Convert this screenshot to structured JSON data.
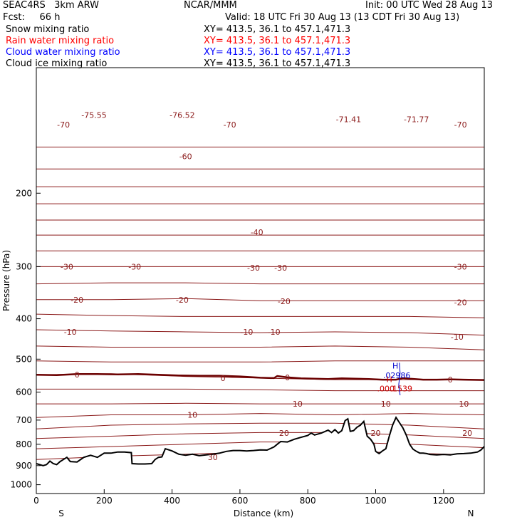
{
  "header": {
    "model": "SEAC4RS   3km ARW",
    "center": "NCAR/MMM",
    "init": "Init: 00 UTC Wed 28 Aug 13",
    "fcst": "Fcst:     66 h",
    "valid": "Valid: 18 UTC Fri 30 Aug 13 (13 CDT Fri 30 Aug 13)"
  },
  "legend": [
    {
      "label": "Snow mixing ratio",
      "xy": "XY= 413.5, 36.1 to 457.1,471.3",
      "color": "#000000"
    },
    {
      "label": "Rain water mixing ratio",
      "xy": "XY= 413.5, 36.1 to 457.1,471.3",
      "color": "#ff0000"
    },
    {
      "label": "Cloud water mixing ratio",
      "xy": "XY= 413.5, 36.1 to 457.1,471.3",
      "color": "#0000ff"
    },
    {
      "label": "Cloud ice mixing ratio",
      "xy": "XY= 413.5, 36.1 to 457.1,471.3",
      "color": "#000000"
    }
  ],
  "colors": {
    "isotherm": "#8b1a1a",
    "terrain": "#000000",
    "rain": "#cc0000",
    "cloud": "#0000cc"
  },
  "chart_data": {
    "type": "line",
    "xlabel": "Distance (km)",
    "ylabel": "Pressure (hPa)",
    "xlim": [
      0,
      1320
    ],
    "ylim": [
      1050,
      100
    ],
    "y_scale": "log",
    "x_ticks": [
      0,
      200,
      400,
      600,
      800,
      1000,
      1200
    ],
    "y_ticks": [
      200,
      300,
      400,
      500,
      600,
      700,
      800,
      900,
      1000
    ],
    "end_labels": {
      "left": "S",
      "right": "N"
    },
    "isotherms": [
      {
        "p": [
          155,
          155,
          155,
          155,
          155,
          155,
          155
        ]
      },
      {
        "p": [
          175,
          175,
          175,
          175,
          175,
          175,
          175
        ]
      },
      {
        "p": [
          193,
          193,
          193,
          193,
          193,
          193,
          193
        ]
      },
      {
        "p": [
          212,
          212,
          212,
          212,
          212,
          212,
          212
        ]
      },
      {
        "p": [
          232,
          232,
          232,
          232,
          232,
          232,
          232
        ]
      },
      {
        "p": [
          252,
          252,
          252,
          252,
          252,
          252,
          252
        ]
      },
      {
        "p": [
          275,
          275,
          275,
          275,
          275,
          275,
          275
        ]
      },
      {
        "p": [
          300,
          300,
          300,
          300,
          300,
          300,
          300
        ]
      },
      {
        "p": [
          330,
          328,
          328,
          330,
          330,
          330,
          330
        ]
      },
      {
        "p": [
          360,
          360,
          358,
          362,
          362,
          362,
          362
        ]
      },
      {
        "p": [
          390,
          393,
          395,
          395,
          395,
          395,
          398
        ]
      },
      {
        "p": [
          425,
          428,
          430,
          432,
          430,
          432,
          438
        ]
      },
      {
        "p": [
          465,
          468,
          468,
          468,
          465,
          468,
          475
        ]
      },
      {
        "p": [
          505,
          508,
          508,
          508,
          505,
          505,
          505
        ]
      },
      {
        "p": [
          545,
          542,
          550,
          555,
          560,
          560,
          560
        ]
      },
      {
        "p": [
          590,
          590,
          590,
          592,
          595,
          595,
          595
        ]
      },
      {
        "p": [
          640,
          640,
          638,
          640,
          640,
          640,
          640
        ]
      },
      {
        "p": [
          690,
          680,
          680,
          675,
          680,
          675,
          680
        ]
      },
      {
        "p": [
          735,
          720,
          715,
          712,
          712,
          720,
          735
        ]
      },
      {
        "p": [
          775,
          765,
          755,
          750,
          750,
          760,
          775
        ]
      },
      {
        "p": [
          820,
          810,
          800,
          790,
          790,
          800,
          815
        ]
      },
      {
        "p": [
          870,
          855,
          845,
          835,
          830,
          840,
          850
        ]
      }
    ],
    "isotherm_x": [
      0,
      220,
      440,
      660,
      880,
      1100,
      1320
    ],
    "isotherm_labels": [
      {
        "text": "-75.55",
        "x": 170,
        "p": 130
      },
      {
        "text": "-76.52",
        "x": 430,
        "p": 130
      },
      {
        "text": "-71.41",
        "x": 920,
        "p": 133
      },
      {
        "text": "-71.77",
        "x": 1120,
        "p": 133
      },
      {
        "text": "-70",
        "x": 80,
        "p": 137
      },
      {
        "text": "-70",
        "x": 570,
        "p": 137
      },
      {
        "text": "-70",
        "x": 1250,
        "p": 137
      },
      {
        "text": "-60",
        "x": 440,
        "p": 163
      },
      {
        "text": "-40",
        "x": 650,
        "p": 248
      },
      {
        "text": "-30",
        "x": 90,
        "p": 300
      },
      {
        "text": "-30",
        "x": 290,
        "p": 300
      },
      {
        "text": "-30",
        "x": 640,
        "p": 302
      },
      {
        "text": "-30",
        "x": 720,
        "p": 302
      },
      {
        "text": "-30",
        "x": 1250,
        "p": 300
      },
      {
        "text": "-20",
        "x": 120,
        "p": 360
      },
      {
        "text": "-20",
        "x": 430,
        "p": 360
      },
      {
        "text": "-20",
        "x": 730,
        "p": 363
      },
      {
        "text": "-20",
        "x": 1250,
        "p": 365
      },
      {
        "text": "-10",
        "x": 100,
        "p": 430
      },
      {
        "text": "-10",
        "x": 620,
        "p": 430
      },
      {
        "text": "-10",
        "x": 700,
        "p": 430
      },
      {
        "text": "-10",
        "x": 1240,
        "p": 442
      },
      {
        "text": "0",
        "x": 120,
        "p": 545
      },
      {
        "text": "0",
        "x": 550,
        "p": 555
      },
      {
        "text": "0",
        "x": 740,
        "p": 553
      },
      {
        "text": "0",
        "x": 1220,
        "p": 560
      },
      {
        "text": "10",
        "x": 770,
        "p": 640
      },
      {
        "text": "10",
        "x": 1030,
        "p": 640
      },
      {
        "text": "10",
        "x": 1260,
        "p": 640
      },
      {
        "text": "10",
        "x": 460,
        "p": 680
      },
      {
        "text": "20",
        "x": 730,
        "p": 752
      },
      {
        "text": "20",
        "x": 1000,
        "p": 752
      },
      {
        "text": "20",
        "x": 1270,
        "p": 752
      },
      {
        "text": "30",
        "x": 520,
        "p": 860
      }
    ],
    "terrain": {
      "x": [
        0,
        10,
        20,
        30,
        40,
        50,
        60,
        70,
        80,
        90,
        100,
        120,
        140,
        160,
        180,
        200,
        220,
        240,
        260,
        280,
        282,
        300,
        320,
        340,
        350,
        360,
        370,
        380,
        400,
        420,
        440,
        460,
        480,
        500,
        520,
        540,
        560,
        580,
        600,
        620,
        640,
        660,
        680,
        700,
        710,
        720,
        740,
        760,
        780,
        800,
        810,
        820,
        840,
        860,
        870,
        880,
        890,
        900,
        910,
        918,
        925,
        935,
        945,
        955,
        965,
        975,
        985,
        995,
        1000,
        1010,
        1020,
        1030,
        1040,
        1050,
        1060,
        1070,
        1080,
        1090,
        1100,
        1110,
        1120,
        1130,
        1140,
        1150,
        1160,
        1180,
        1200,
        1220,
        1240,
        1260,
        1280,
        1300,
        1310,
        1320
      ],
      "p": [
        890,
        895,
        900,
        895,
        878,
        890,
        895,
        880,
        870,
        860,
        880,
        882,
        860,
        850,
        860,
        840,
        840,
        835,
        835,
        838,
        890,
        892,
        892,
        890,
        870,
        860,
        858,
        820,
        830,
        845,
        850,
        845,
        852,
        848,
        845,
        840,
        832,
        828,
        828,
        830,
        828,
        825,
        826,
        812,
        800,
        788,
        790,
        778,
        770,
        762,
        752,
        760,
        752,
        740,
        750,
        738,
        752,
        742,
        702,
        695,
        745,
        742,
        728,
        720,
        705,
        765,
        778,
        800,
        832,
        842,
        830,
        820,
        765,
        720,
        690,
        710,
        730,
        760,
        800,
        822,
        832,
        840,
        840,
        842,
        846,
        848,
        846,
        848,
        843,
        842,
        840,
        835,
        826,
        810
      ]
    },
    "zero_isotherm": {
      "x": [
        0,
        60,
        120,
        180,
        240,
        300,
        360,
        420,
        480,
        540,
        600,
        660,
        700,
        710,
        740,
        780,
        820,
        860,
        900,
        940,
        980,
        1020,
        1060,
        1080,
        1100,
        1140,
        1180,
        1220,
        1260,
        1320
      ],
      "p": [
        545,
        546,
        543,
        543,
        544,
        543,
        545,
        547,
        548,
        548,
        550,
        554,
        555,
        549,
        553,
        556,
        557,
        558,
        556,
        557,
        558,
        560,
        560,
        555,
        557,
        560,
        560,
        559,
        560,
        561
      ]
    },
    "annotations": [
      {
        "text": "H",
        "color": "blue",
        "x": 1058,
        "p": 527
      },
      {
        "text": ".02986",
        "color": "blue",
        "x": 1062,
        "p": 555
      },
      {
        "text": "H",
        "color": "red",
        "x": 1040,
        "p": 567
      },
      {
        "text": ".000",
        "color": "red",
        "x": 1030,
        "p": 597
      },
      {
        "text": ".1539",
        "color": "red",
        "x": 1075,
        "p": 597
      }
    ]
  }
}
